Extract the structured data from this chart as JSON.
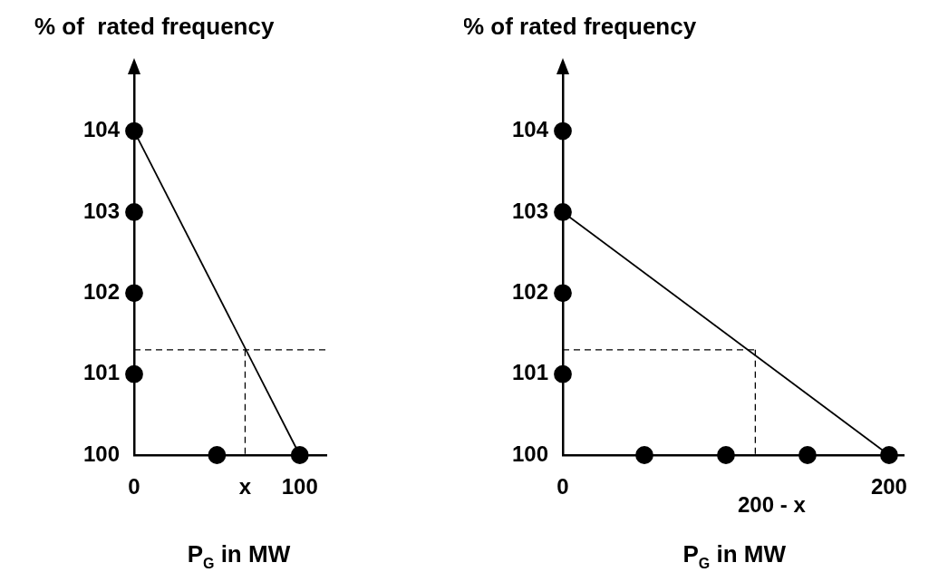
{
  "chart_data": [
    {
      "type": "line",
      "ylabel": "% of  rated frequency",
      "xlabel": "P$_{G}$ in MW",
      "xlim": [
        0,
        116
      ],
      "ylim": [
        100,
        104.7
      ],
      "xticks": [
        0,
        {
          "value": 67,
          "label": "x"
        },
        100
      ],
      "yticks": [
        100,
        101,
        102,
        103,
        104
      ],
      "grid": false,
      "legend": false,
      "series": [
        {
          "type": "line",
          "x": [
            0,
            100
          ],
          "values": [
            104,
            100
          ],
          "color": "#000000",
          "marker": "none",
          "line_style": "solid"
        },
        {
          "type": "line",
          "x": [
            0,
            116
          ],
          "values": [
            101.3,
            101.3
          ],
          "color": "#000000",
          "marker": "none",
          "line_style": "dashed"
        },
        {
          "type": "line",
          "x": [
            67,
            67
          ],
          "values": [
            101.3,
            100
          ],
          "color": "#000000",
          "marker": "none",
          "line_style": "dashed"
        },
        {
          "type": "scatter",
          "x": [
            0,
            0,
            0,
            0,
            50,
            100
          ],
          "values": [
            101,
            102,
            103,
            104,
            100,
            100
          ],
          "color": "#000000",
          "marker": "circle"
        }
      ]
    },
    {
      "type": "line",
      "ylabel": "% of rated frequency",
      "xlabel": "P$_{G}$ in MW",
      "xlim": [
        0,
        209
      ],
      "ylim": [
        100,
        104.7
      ],
      "xticks": [
        0,
        200
      ],
      "annotations": [
        {
          "text": "200 - x",
          "x": 118,
          "y": 100
        }
      ],
      "yticks": [
        100,
        101,
        102,
        103,
        104
      ],
      "grid": false,
      "legend": false,
      "series": [
        {
          "type": "line",
          "x": [
            0,
            200
          ],
          "values": [
            103,
            100
          ],
          "color": "#000000",
          "marker": "none",
          "line_style": "solid"
        },
        {
          "type": "line",
          "x": [
            0,
            118
          ],
          "values": [
            101.3,
            101.3
          ],
          "color": "#000000",
          "marker": "none",
          "line_style": "dashed"
        },
        {
          "type": "line",
          "x": [
            118,
            118
          ],
          "values": [
            101.3,
            100
          ],
          "color": "#000000",
          "marker": "none",
          "line_style": "dashed"
        },
        {
          "type": "scatter",
          "x": [
            0,
            0,
            0,
            0,
            50,
            100,
            150,
            200
          ],
          "values": [
            101,
            102,
            103,
            104,
            100,
            100,
            100,
            100
          ],
          "color": "#000000",
          "marker": "circle"
        }
      ]
    }
  ]
}
